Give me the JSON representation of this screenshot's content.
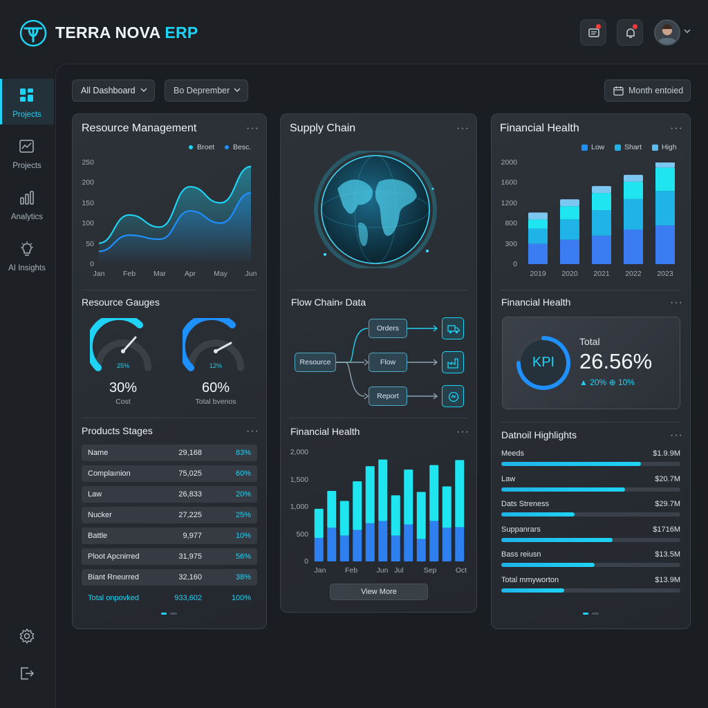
{
  "app": {
    "brand_main": "TERRA NOVA ",
    "brand_accent": "ERP"
  },
  "sidebar": {
    "items": [
      {
        "label": "Projects",
        "icon": "grid-icon",
        "active": true
      },
      {
        "label": "Projects",
        "icon": "trend-chart-icon"
      },
      {
        "label": "Analytics",
        "icon": "bar-chart-icon"
      },
      {
        "label": "AI Insights",
        "icon": "lightbulb-icon"
      }
    ],
    "bottom_icons": [
      "gear-icon",
      "logout-icon"
    ]
  },
  "header": {
    "icons": [
      "message-icon",
      "bell-icon",
      "avatar"
    ]
  },
  "filters": {
    "dashboard": "All Dashboard",
    "period": "Bo Deprember",
    "date_range": "Month entoied"
  },
  "resource": {
    "title": "Resource Management",
    "legend": [
      "Broet",
      "Besc."
    ],
    "y_ticks": [
      "250",
      "200",
      "150",
      "100",
      "50",
      "0"
    ],
    "x_ticks": [
      "Jan",
      "Feb",
      "Mar",
      "Apr",
      "May",
      "Jun"
    ]
  },
  "gauges": {
    "title": "Resource Gauges",
    "items": [
      {
        "inner": "25%",
        "value": "30%",
        "label": "Cost",
        "level": 0.75
      },
      {
        "inner": "12%",
        "value": "60%",
        "label": "Total bvenos",
        "level": 0.75
      }
    ]
  },
  "stages": {
    "title": "Products Stages",
    "rows": [
      {
        "name": "Name",
        "value": "29,168",
        "pct": "83%"
      },
      {
        "name": "Complaınion",
        "value": "75,025",
        "pct": "60%"
      },
      {
        "name": "Law",
        "value": "26,833",
        "pct": "20%"
      },
      {
        "name": "Nucker",
        "value": "27,225",
        "pct": "25%"
      },
      {
        "name": "Battle",
        "value": "9,977",
        "pct": "10%"
      },
      {
        "name": "Ploot Apcnirred",
        "value": "31,975",
        "pct": "56%"
      },
      {
        "name": "Biant Rneurred",
        "value": "32,160",
        "pct": "38%"
      }
    ],
    "total": {
      "name": "Total onpovked",
      "value": "933,602",
      "pct": "100%"
    }
  },
  "supply": {
    "title": "Supply Chain",
    "flow_title": "Flow Chain⸗ Data",
    "flow": {
      "source": "Resource",
      "nodes": [
        "Orders",
        "Flow",
        "Report"
      ],
      "icons": [
        "truck-icon",
        "factory-icon",
        "report-icon"
      ]
    },
    "fin_title": "Financial Health",
    "y_ticks": [
      "2,000",
      "1,500",
      "1,000",
      "500",
      "0"
    ],
    "x_ticks": [
      "Jan",
      "Feb",
      "Jun",
      "Jul",
      "Sep",
      "Oct"
    ],
    "view_more": "View More"
  },
  "financial": {
    "title": "Financial Health",
    "legend": [
      "Low",
      "Shart",
      "High"
    ],
    "y_ticks": [
      "2000",
      "1600",
      "1200",
      "800",
      "300",
      "0"
    ],
    "x_ticks": [
      "2019",
      "2020",
      "2021",
      "2022",
      "2023"
    ],
    "kpi_title": "Financial Health",
    "kpi": {
      "ring": "KPI",
      "label": "Total",
      "value": "26.56%",
      "change": "▲ 20% ⊕ 10%"
    },
    "highlights_title": "Datnoil Highlights",
    "highlights": [
      {
        "label": "Meeds",
        "value": "$1.9.9M",
        "level": 0.78
      },
      {
        "label": "Law",
        "value": "$20.7M",
        "level": 0.69
      },
      {
        "label": "Dats Streness",
        "value": "$29.7M",
        "level": 0.41
      },
      {
        "label": "Suppanrars",
        "value": "$1716M",
        "level": 0.62
      },
      {
        "label": "Bass reiusn",
        "value": "$13.5M",
        "level": 0.52
      },
      {
        "label": "Total mmyworton",
        "value": "$13.9M",
        "level": 0.35
      }
    ]
  },
  "chart_data": [
    {
      "type": "line",
      "title": "Resource Management",
      "x": [
        "Jan",
        "Feb",
        "Mar",
        "Apr",
        "May",
        "Jun"
      ],
      "ylim": [
        0,
        250
      ],
      "series": [
        {
          "name": "Broet",
          "values": [
            50,
            120,
            90,
            190,
            150,
            240
          ]
        },
        {
          "name": "Besc.",
          "values": [
            30,
            70,
            60,
            130,
            100,
            175
          ]
        }
      ],
      "legend": "top-right"
    },
    {
      "type": "bar",
      "title": "Financial Health",
      "categories": [
        "Jan",
        "",
        "Feb",
        "",
        "",
        "Jun",
        "",
        "Jul",
        "",
        "Sep",
        "",
        "Oct"
      ],
      "ylim": [
        0,
        2000
      ],
      "series": [
        {
          "values": [
            520,
            660,
            620,
            870,
            1020,
            1100,
            720,
            980,
            840,
            1000,
            740,
            1200
          ]
        },
        {
          "values": [
            420,
            600,
            460,
            560,
            680,
            720,
            460,
            660,
            400,
            720,
            600,
            610
          ]
        }
      ]
    },
    {
      "type": "bar",
      "title": "Financial Health",
      "categories": [
        "2019",
        "2020",
        "2021",
        "2022",
        "2023"
      ],
      "ylim": [
        0,
        2000
      ],
      "legend": "top-right",
      "series": [
        {
          "name": "Low",
          "values": [
            400,
            480,
            560,
            680,
            760
          ]
        },
        {
          "name": "Shart",
          "values": [
            300,
            400,
            500,
            600,
            680
          ]
        },
        {
          "name": "High",
          "values": [
            180,
            260,
            340,
            340,
            460
          ]
        }
      ]
    }
  ],
  "colors": {
    "accent": "#1fd3f5",
    "accent2": "#1e90ff",
    "panel": "#2a2f36",
    "bg": "#1b1f24"
  }
}
